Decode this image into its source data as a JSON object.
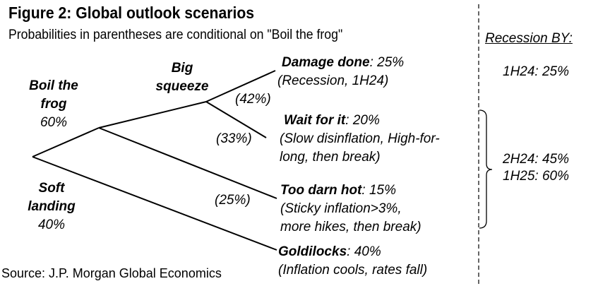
{
  "figure": {
    "title": "Figure 2: Global outlook scenarios",
    "subtitle": "Probabilities in parentheses are conditional on \"Boil the frog\"",
    "source": "Source: J.P. Morgan Global Economics"
  },
  "nodes": {
    "boil": {
      "line1": "Boil the",
      "line2": "frog",
      "prob": "60%"
    },
    "soft": {
      "line1": "Soft",
      "line2": "landing",
      "prob": "40%"
    },
    "big": {
      "line1": "Big",
      "line2": "squeeze"
    }
  },
  "branch_probs": {
    "big_squeeze": "(42%)",
    "wait": "(33%)",
    "hot": "(25%)"
  },
  "outcomes": {
    "damage": {
      "name": "Damage done",
      "prob": ": 25%",
      "desc1": "(Recession, 1H24)"
    },
    "wait": {
      "name": "Wait for it",
      "prob": ": 20%",
      "desc1": "(Slow disinflation, High-for-",
      "desc2": "long, then break)"
    },
    "hot": {
      "name": "Too darn hot",
      "prob": ": 15%",
      "desc1": "(Sticky inflation>3%,",
      "desc2": "more hikes, then break)"
    },
    "gold": {
      "name": "Goldilocks",
      "prob": ": 40%",
      "desc1": "(Inflation cools, rates fall)"
    }
  },
  "recession": {
    "header": "Recession BY:",
    "h124": "1H24: 25%",
    "h224": "2H24: 45%",
    "h125": "1H25: 60%"
  }
}
